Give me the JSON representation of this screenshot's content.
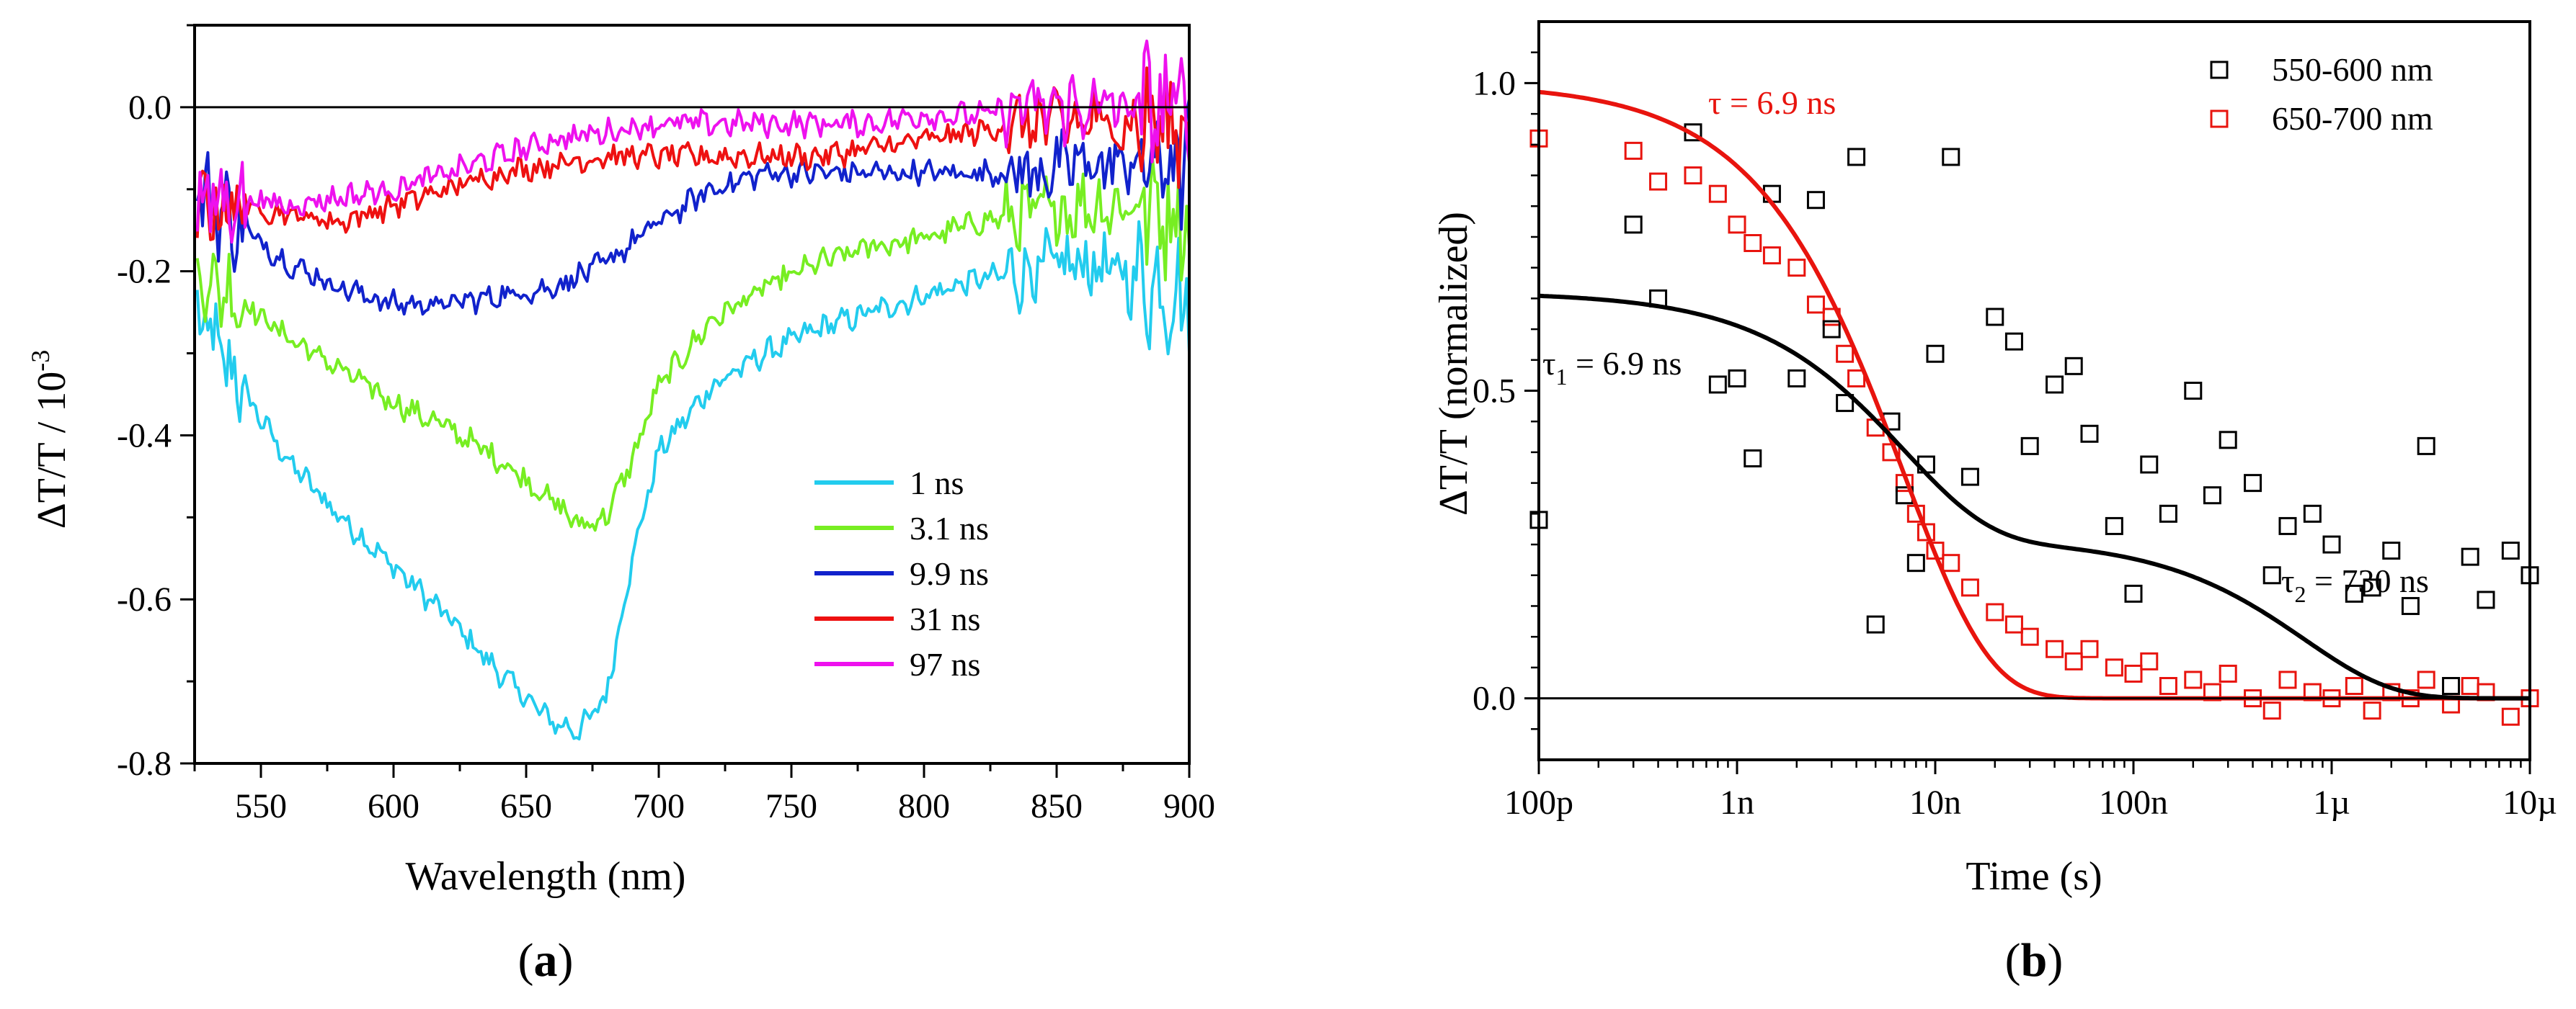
{
  "chart_data": [
    {
      "type": "line",
      "panel_label": "(a)",
      "panel_letter": "a",
      "xlabel": "Wavelength (nm)",
      "ylabel": "ΔT/T / 10",
      "ylabel_exp": "-3",
      "xlim": [
        525,
        900
      ],
      "ylim": [
        -0.8,
        0.1
      ],
      "xticks": [
        550,
        600,
        650,
        700,
        750,
        800,
        850,
        900
      ],
      "yticks": [
        0.0,
        -0.2,
        -0.4,
        -0.6,
        -0.8
      ],
      "ytick_labels": [
        "0.0",
        "-0.2",
        "-0.4",
        "-0.6",
        "-0.8"
      ],
      "zero_line": 0,
      "legend_position": "lower-right",
      "series": [
        {
          "name": "1 ns",
          "color": "#22ccee",
          "x": [
            525,
            540,
            560,
            580,
            600,
            620,
            640,
            660,
            670,
            680,
            690,
            700,
            720,
            740,
            760,
            780,
            800,
            820,
            840,
            860,
            880,
            900
          ],
          "y": [
            -0.25,
            -0.33,
            -0.43,
            -0.5,
            -0.56,
            -0.62,
            -0.69,
            -0.75,
            -0.76,
            -0.72,
            -0.55,
            -0.42,
            -0.34,
            -0.3,
            -0.27,
            -0.25,
            -0.23,
            -0.21,
            -0.2,
            -0.19,
            -0.21,
            -0.23
          ]
        },
        {
          "name": "3.1 ns",
          "color": "#77ee22",
          "x": [
            525,
            540,
            560,
            580,
            600,
            620,
            640,
            660,
            670,
            680,
            690,
            700,
            720,
            740,
            760,
            780,
            800,
            820,
            840,
            860,
            880,
            900
          ],
          "y": [
            -0.2,
            -0.23,
            -0.28,
            -0.32,
            -0.36,
            -0.39,
            -0.43,
            -0.48,
            -0.51,
            -0.5,
            -0.43,
            -0.34,
            -0.26,
            -0.22,
            -0.19,
            -0.17,
            -0.16,
            -0.14,
            -0.13,
            -0.12,
            -0.12,
            -0.13
          ]
        },
        {
          "name": "9.9 ns",
          "color": "#1122cc",
          "x": [
            525,
            540,
            560,
            580,
            600,
            620,
            640,
            660,
            680,
            700,
            720,
            740,
            760,
            780,
            800,
            820,
            840,
            860,
            880,
            900
          ],
          "y": [
            -0.1,
            -0.14,
            -0.19,
            -0.22,
            -0.24,
            -0.24,
            -0.23,
            -0.22,
            -0.19,
            -0.14,
            -0.1,
            -0.08,
            -0.08,
            -0.08,
            -0.08,
            -0.08,
            -0.08,
            -0.07,
            -0.07,
            -0.07
          ]
        },
        {
          "name": "31 ns",
          "color": "#ee1111",
          "x": [
            525,
            540,
            560,
            580,
            600,
            620,
            640,
            660,
            680,
            700,
            720,
            740,
            760,
            780,
            800,
            820,
            840,
            860,
            880,
            900
          ],
          "y": [
            -0.12,
            -0.12,
            -0.13,
            -0.14,
            -0.12,
            -0.1,
            -0.08,
            -0.07,
            -0.06,
            -0.06,
            -0.06,
            -0.06,
            -0.06,
            -0.05,
            -0.04,
            -0.03,
            -0.02,
            -0.02,
            -0.02,
            -0.02
          ]
        },
        {
          "name": "97 ns",
          "color": "#ee11ee",
          "x": [
            525,
            540,
            560,
            580,
            600,
            620,
            640,
            660,
            680,
            700,
            720,
            740,
            760,
            780,
            800,
            820,
            840,
            860,
            880,
            900
          ],
          "y": [
            -0.12,
            -0.11,
            -0.12,
            -0.11,
            -0.1,
            -0.08,
            -0.06,
            -0.04,
            -0.03,
            -0.02,
            -0.02,
            -0.02,
            -0.02,
            -0.02,
            -0.01,
            -0.01,
            0.0,
            0.0,
            0.0,
            0.0
          ]
        }
      ]
    },
    {
      "type": "scatter",
      "panel_label": "(b)",
      "panel_letter": "b",
      "xlabel": "Time (s)",
      "ylabel": "ΔT/T (normalized)",
      "xscale": "log",
      "xlim": [
        1e-10,
        1e-05
      ],
      "ylim": [
        -0.1,
        1.1
      ],
      "xticks": [
        1e-10,
        1e-09,
        1e-08,
        1e-07,
        1e-06,
        1e-05
      ],
      "xtick_labels": [
        "100p",
        "1n",
        "10n",
        "100n",
        "1µ",
        "10µ"
      ],
      "yticks": [
        0.0,
        0.5,
        1.0
      ],
      "ytick_labels": [
        "0.0",
        "0.5",
        "1.0"
      ],
      "zero_line": 0,
      "legend_position": "top-right",
      "annotations": {
        "tau_red": "τ = 6.9 ns",
        "tau1_sym": "τ",
        "tau1_sub": "1",
        "tau1_val": " = 6.9 ns",
        "tau2_sym": "τ",
        "tau2_sub": "2",
        "tau2_val": " = 730 ns"
      },
      "series": [
        {
          "name": "550-600 nm",
          "color": "#000000",
          "marker": "open-square",
          "x": [
            1e-10,
            3e-10,
            4e-10,
            6e-10,
            8e-10,
            1e-09,
            1.2e-09,
            1.5e-09,
            2e-09,
            2.5e-09,
            3e-09,
            3.5e-09,
            4e-09,
            5e-09,
            6e-09,
            7e-09,
            8e-09,
            9e-09,
            1e-08,
            1.2e-08,
            1.5e-08,
            2e-08,
            2.5e-08,
            3e-08,
            4e-08,
            5e-08,
            6e-08,
            8e-08,
            1e-07,
            1.2e-07,
            1.5e-07,
            2e-07,
            2.5e-07,
            3e-07,
            4e-07,
            5e-07,
            6e-07,
            8e-07,
            1e-06,
            1.3e-06,
            1.6e-06,
            2e-06,
            2.5e-06,
            3e-06,
            4e-06,
            5e-06,
            6e-06,
            8e-06,
            1e-05
          ],
          "y": [
            0.29,
            0.77,
            0.65,
            0.92,
            0.51,
            0.52,
            0.39,
            0.82,
            0.52,
            0.81,
            0.6,
            0.48,
            0.88,
            0.12,
            0.45,
            0.33,
            0.22,
            0.38,
            0.56,
            0.88,
            0.36,
            0.62,
            0.58,
            0.41,
            0.51,
            0.54,
            0.43,
            0.28,
            0.17,
            0.38,
            0.3,
            0.5,
            0.33,
            0.42,
            0.35,
            0.2,
            0.28,
            0.3,
            0.25,
            0.17,
            0.18,
            0.24,
            0.15,
            0.41,
            0.02,
            0.23,
            0.16,
            0.24,
            0.2
          ]
        },
        {
          "name": "650-700 nm",
          "color": "#e8140e",
          "marker": "open-square",
          "x": [
            1e-10,
            3e-10,
            4e-10,
            6e-10,
            8e-10,
            1e-09,
            1.2e-09,
            1.5e-09,
            2e-09,
            2.5e-09,
            3e-09,
            3.5e-09,
            4e-09,
            5e-09,
            6e-09,
            7e-09,
            8e-09,
            9e-09,
            1e-08,
            1.2e-08,
            1.5e-08,
            2e-08,
            2.5e-08,
            3e-08,
            4e-08,
            5e-08,
            6e-08,
            8e-08,
            1e-07,
            1.2e-07,
            1.5e-07,
            2e-07,
            2.5e-07,
            3e-07,
            4e-07,
            5e-07,
            6e-07,
            8e-07,
            1e-06,
            1.3e-06,
            1.6e-06,
            2e-06,
            2.5e-06,
            3e-06,
            4e-06,
            5e-06,
            6e-06,
            8e-06,
            1e-05
          ],
          "y": [
            0.91,
            0.89,
            0.84,
            0.85,
            0.82,
            0.77,
            0.74,
            0.72,
            0.7,
            0.64,
            0.62,
            0.56,
            0.52,
            0.44,
            0.4,
            0.35,
            0.3,
            0.27,
            0.24,
            0.22,
            0.18,
            0.14,
            0.12,
            0.1,
            0.08,
            0.06,
            0.08,
            0.05,
            0.04,
            0.06,
            0.02,
            0.03,
            0.01,
            0.04,
            0.0,
            -0.02,
            0.03,
            0.01,
            0.0,
            0.02,
            -0.02,
            0.01,
            0.0,
            0.03,
            -0.01,
            0.02,
            0.01,
            -0.03,
            0.0
          ]
        },
        {
          "name": "fit 650-700 nm",
          "color": "#e8140e",
          "type": "fit",
          "model": "single-exponential",
          "amplitude": 1.0,
          "tau_ns": 6.9
        },
        {
          "name": "fit 550-600 nm",
          "color": "#000000",
          "type": "fit",
          "model": "bi-exponential",
          "a1": 0.4,
          "tau1_ns": 6.9,
          "a2": 0.26,
          "tau2_ns": 730
        }
      ]
    }
  ]
}
